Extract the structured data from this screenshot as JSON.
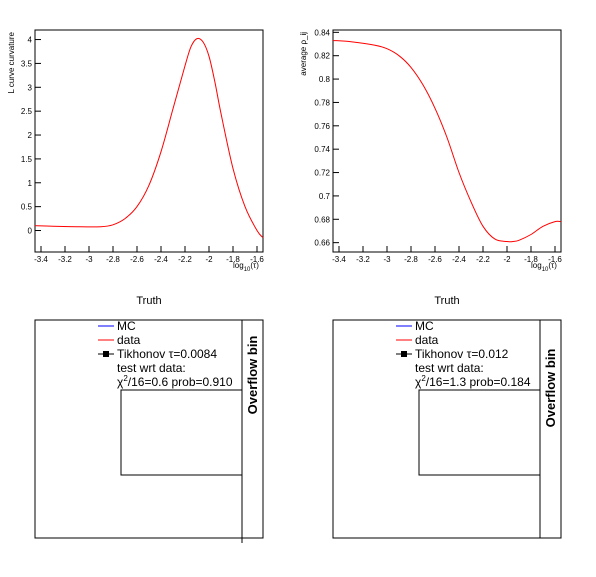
{
  "chart_data": [
    {
      "type": "line",
      "ylabel": "L curve curvature",
      "xlabel_base": "log",
      "xlabel_sub": "10",
      "xlabel_arg": "(τ)",
      "xlim": [
        -3.45,
        -1.55
      ],
      "ylim": [
        -0.45,
        4.2
      ],
      "xticks": [
        "-3.4",
        "-3.2",
        "-3",
        "-2.8",
        "-2.6",
        "-2.4",
        "-2.2",
        "-2",
        "-1.8",
        "-1.6"
      ],
      "xtick_values": [
        -3.4,
        -3.2,
        -3.0,
        -2.8,
        -2.6,
        -2.4,
        -2.2,
        -2.0,
        -1.8,
        -1.6
      ],
      "yticks": [
        "0",
        "0.5",
        "1",
        "1.5",
        "2",
        "2.5",
        "3",
        "3.5",
        "4"
      ],
      "ytick_values": [
        0,
        0.5,
        1,
        1.5,
        2,
        2.5,
        3,
        3.5,
        4
      ],
      "series": [
        {
          "color": "#ff0000",
          "x": [
            -3.45,
            -3.3,
            -3.1,
            -2.9,
            -2.8,
            -2.7,
            -2.6,
            -2.5,
            -2.4,
            -2.3,
            -2.2,
            -2.15,
            -2.1,
            -2.05,
            -2.0,
            -1.95,
            -1.9,
            -1.8,
            -1.7,
            -1.6,
            -1.55
          ],
          "y": [
            0.1,
            0.09,
            0.08,
            0.08,
            0.12,
            0.25,
            0.5,
            0.95,
            1.65,
            2.55,
            3.45,
            3.85,
            4.02,
            3.95,
            3.65,
            3.1,
            2.45,
            1.3,
            0.5,
            0.0,
            -0.15
          ]
        }
      ]
    },
    {
      "type": "line",
      "ylabel": "average ρ_ij",
      "xlabel_base": "log",
      "xlabel_sub": "10",
      "xlabel_arg": "(τ)",
      "xlim": [
        -3.45,
        -1.55
      ],
      "ylim": [
        0.652,
        0.842
      ],
      "xticks": [
        "-3.4",
        "-3.2",
        "-3",
        "-2.8",
        "-2.6",
        "-2.4",
        "-2.2",
        "-2",
        "-1.8",
        "-1.6"
      ],
      "xtick_values": [
        -3.4,
        -3.2,
        -3.0,
        -2.8,
        -2.6,
        -2.4,
        -2.2,
        -2.0,
        -1.8,
        -1.6
      ],
      "yticks": [
        "0.66",
        "0.68",
        "0.7",
        "0.72",
        "0.74",
        "0.76",
        "0.78",
        "0.8",
        "0.82",
        "0.84"
      ],
      "ytick_values": [
        0.66,
        0.68,
        0.7,
        0.72,
        0.74,
        0.76,
        0.78,
        0.8,
        0.82,
        0.84
      ],
      "series": [
        {
          "color": "#ff0000",
          "x": [
            -3.45,
            -3.3,
            -3.1,
            -3.0,
            -2.9,
            -2.8,
            -2.7,
            -2.6,
            -2.5,
            -2.4,
            -2.3,
            -2.2,
            -2.1,
            -2.0,
            -1.95,
            -1.9,
            -1.8,
            -1.7,
            -1.6,
            -1.55
          ],
          "y": [
            0.833,
            0.832,
            0.829,
            0.826,
            0.82,
            0.81,
            0.795,
            0.775,
            0.75,
            0.72,
            0.695,
            0.674,
            0.663,
            0.661,
            0.661,
            0.662,
            0.667,
            0.674,
            0.678,
            0.678
          ]
        }
      ]
    },
    {
      "type": "table",
      "title": "Truth",
      "legend": [
        "MC",
        "data",
        "Tikhonov τ=0.0084"
      ],
      "legend_colors": [
        "#0000ff",
        "#ff0000",
        "#000000"
      ],
      "info_line1": "test wrt data:",
      "info_chi_base": "χ",
      "info_chi_sup": "2",
      "info_chi_rest": "/16=0.6 prob=0.910",
      "overflow_label": "Overflow bin"
    },
    {
      "type": "table",
      "title": "Truth",
      "legend": [
        "MC",
        "data",
        "Tikhonov τ=0.012"
      ],
      "legend_colors": [
        "#0000ff",
        "#ff0000",
        "#000000"
      ],
      "info_line1": "test wrt data:",
      "info_chi_base": "χ",
      "info_chi_sup": "2",
      "info_chi_rest": "/16=1.3 prob=0.184",
      "overflow_label": "Overflow bin"
    }
  ]
}
